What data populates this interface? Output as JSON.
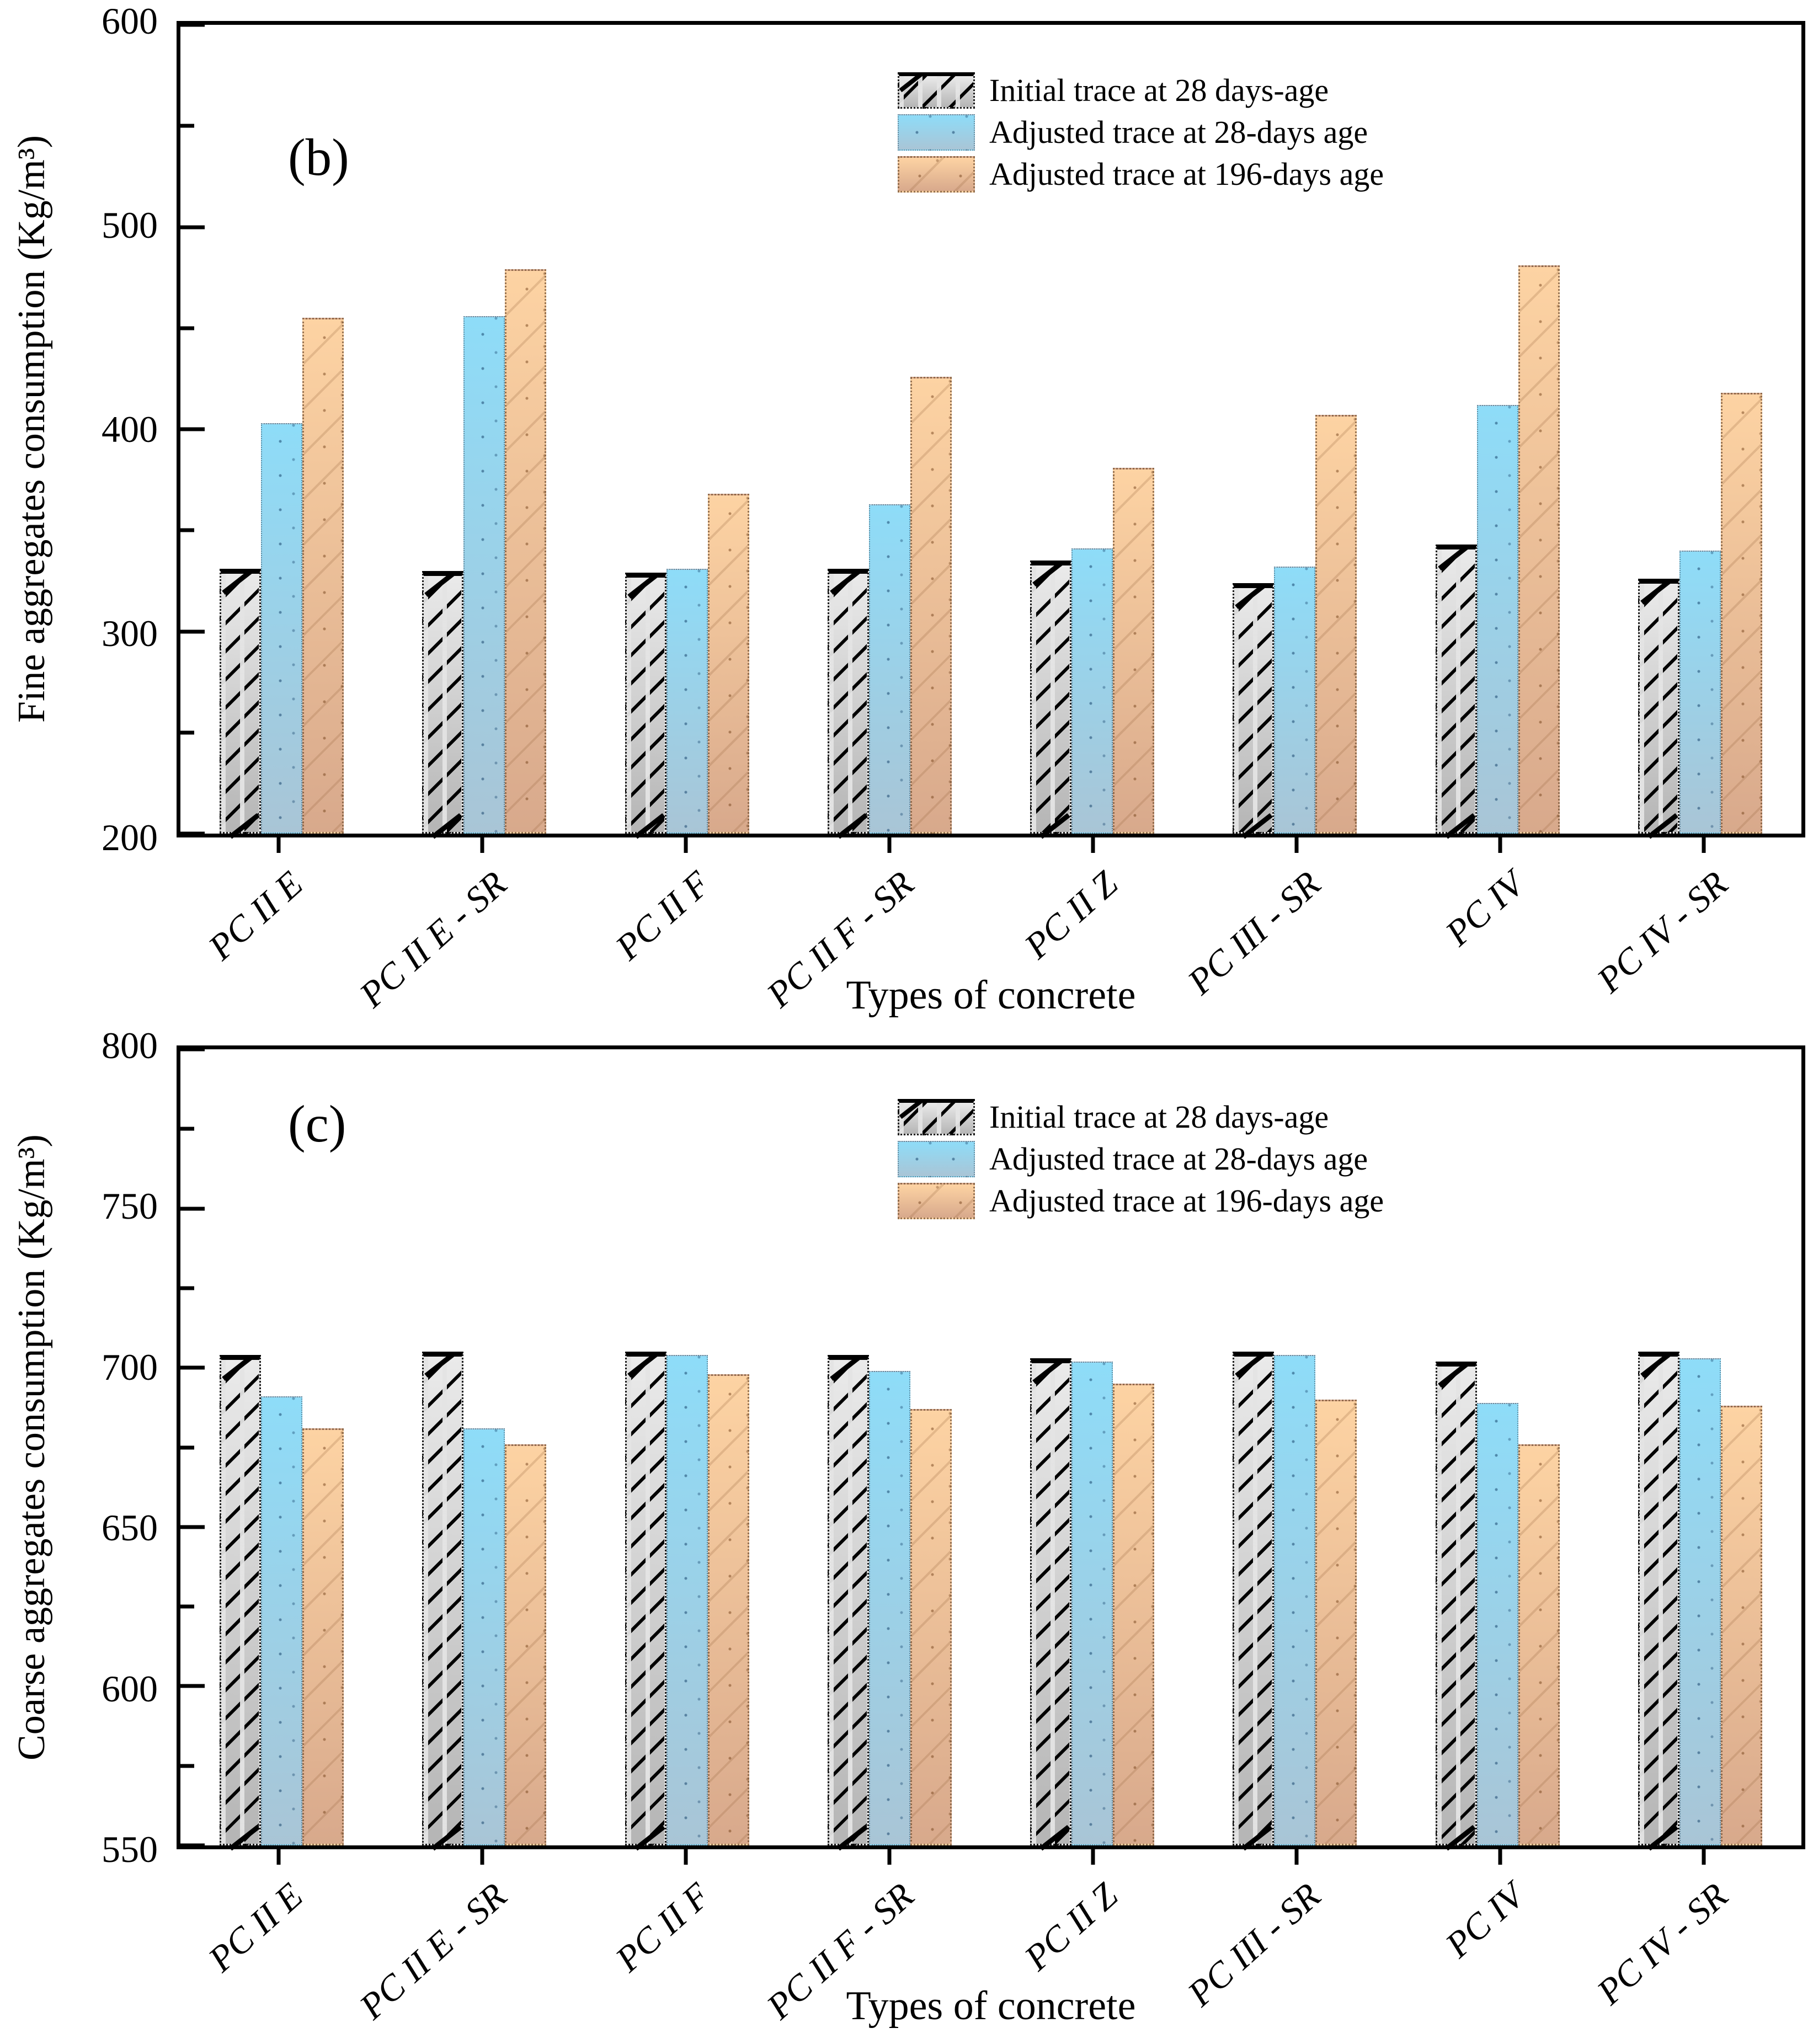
{
  "style": {
    "background": "#ffffff",
    "axis_color": "#000000",
    "series_styles": [
      {
        "key": "initial-28",
        "fill": "#c9c9c9",
        "pattern": "black-dashed-diagonal-hatch"
      },
      {
        "key": "adjusted-28",
        "fill_top": "#8edcf8",
        "fill_bottom": "#a9c5d6",
        "pattern": "sparse-dots"
      },
      {
        "key": "adjusted-196",
        "fill_top": "#fdd3a3",
        "fill_bottom": "#d8a98c",
        "pattern": "sparse-dotted-diagonal"
      }
    ]
  },
  "chart_data": [
    {
      "type": "bar",
      "panel_label": "(b)",
      "title": "",
      "ylabel": "Fine aggregates consumption (Kg/m³)",
      "xlabel": "Types of concrete",
      "ylim": [
        200,
        600
      ],
      "ytick_major": [
        600,
        500,
        400,
        300,
        200
      ],
      "ytick_minor": [
        550,
        450,
        350,
        250
      ],
      "grid": false,
      "legend_position": "upper center",
      "categories": [
        "PC II E",
        "PC II E - SR",
        "PC II F",
        "PC II F - SR",
        "PC II Z",
        "PC III - SR",
        "PC IV",
        "PC IV - SR"
      ],
      "series": [
        {
          "name": "Initial trace at 28 days-age",
          "values": [
            331,
            330,
            329,
            331,
            335,
            324,
            343,
            326
          ]
        },
        {
          "name": "Adjusted trace at 28-days age",
          "values": [
            403,
            456,
            331,
            363,
            341,
            332,
            412,
            340
          ]
        },
        {
          "name": "Adjusted trace at 196-days age",
          "values": [
            455,
            479,
            368,
            426,
            381,
            407,
            481,
            418
          ]
        }
      ]
    },
    {
      "type": "bar",
      "panel_label": "(c)",
      "title": "",
      "ylabel": "Coarse aggregates consumption (Kg/m³)",
      "xlabel": "Types of concrete",
      "ylim": [
        550,
        800
      ],
      "ytick_major": [
        800,
        750,
        700,
        650,
        600,
        550
      ],
      "ytick_minor": [
        775,
        725,
        675,
        625,
        575
      ],
      "grid": false,
      "legend_position": "upper center",
      "categories": [
        "PC II E",
        "PC II E - SR",
        "PC II F",
        "PC II F - SR",
        "PC II Z",
        "PC III - SR",
        "PC IV",
        "PC IV - SR"
      ],
      "series": [
        {
          "name": "Initial trace at 28 days-age",
          "values": [
            704,
            705,
            705,
            704,
            703,
            705,
            702,
            705
          ]
        },
        {
          "name": "Adjusted trace at 28-days age",
          "values": [
            691,
            681,
            704,
            699,
            702,
            704,
            689,
            703
          ]
        },
        {
          "name": "Adjusted trace at 196-days age",
          "values": [
            681,
            676,
            698,
            687,
            695,
            690,
            676,
            688
          ]
        }
      ]
    }
  ]
}
